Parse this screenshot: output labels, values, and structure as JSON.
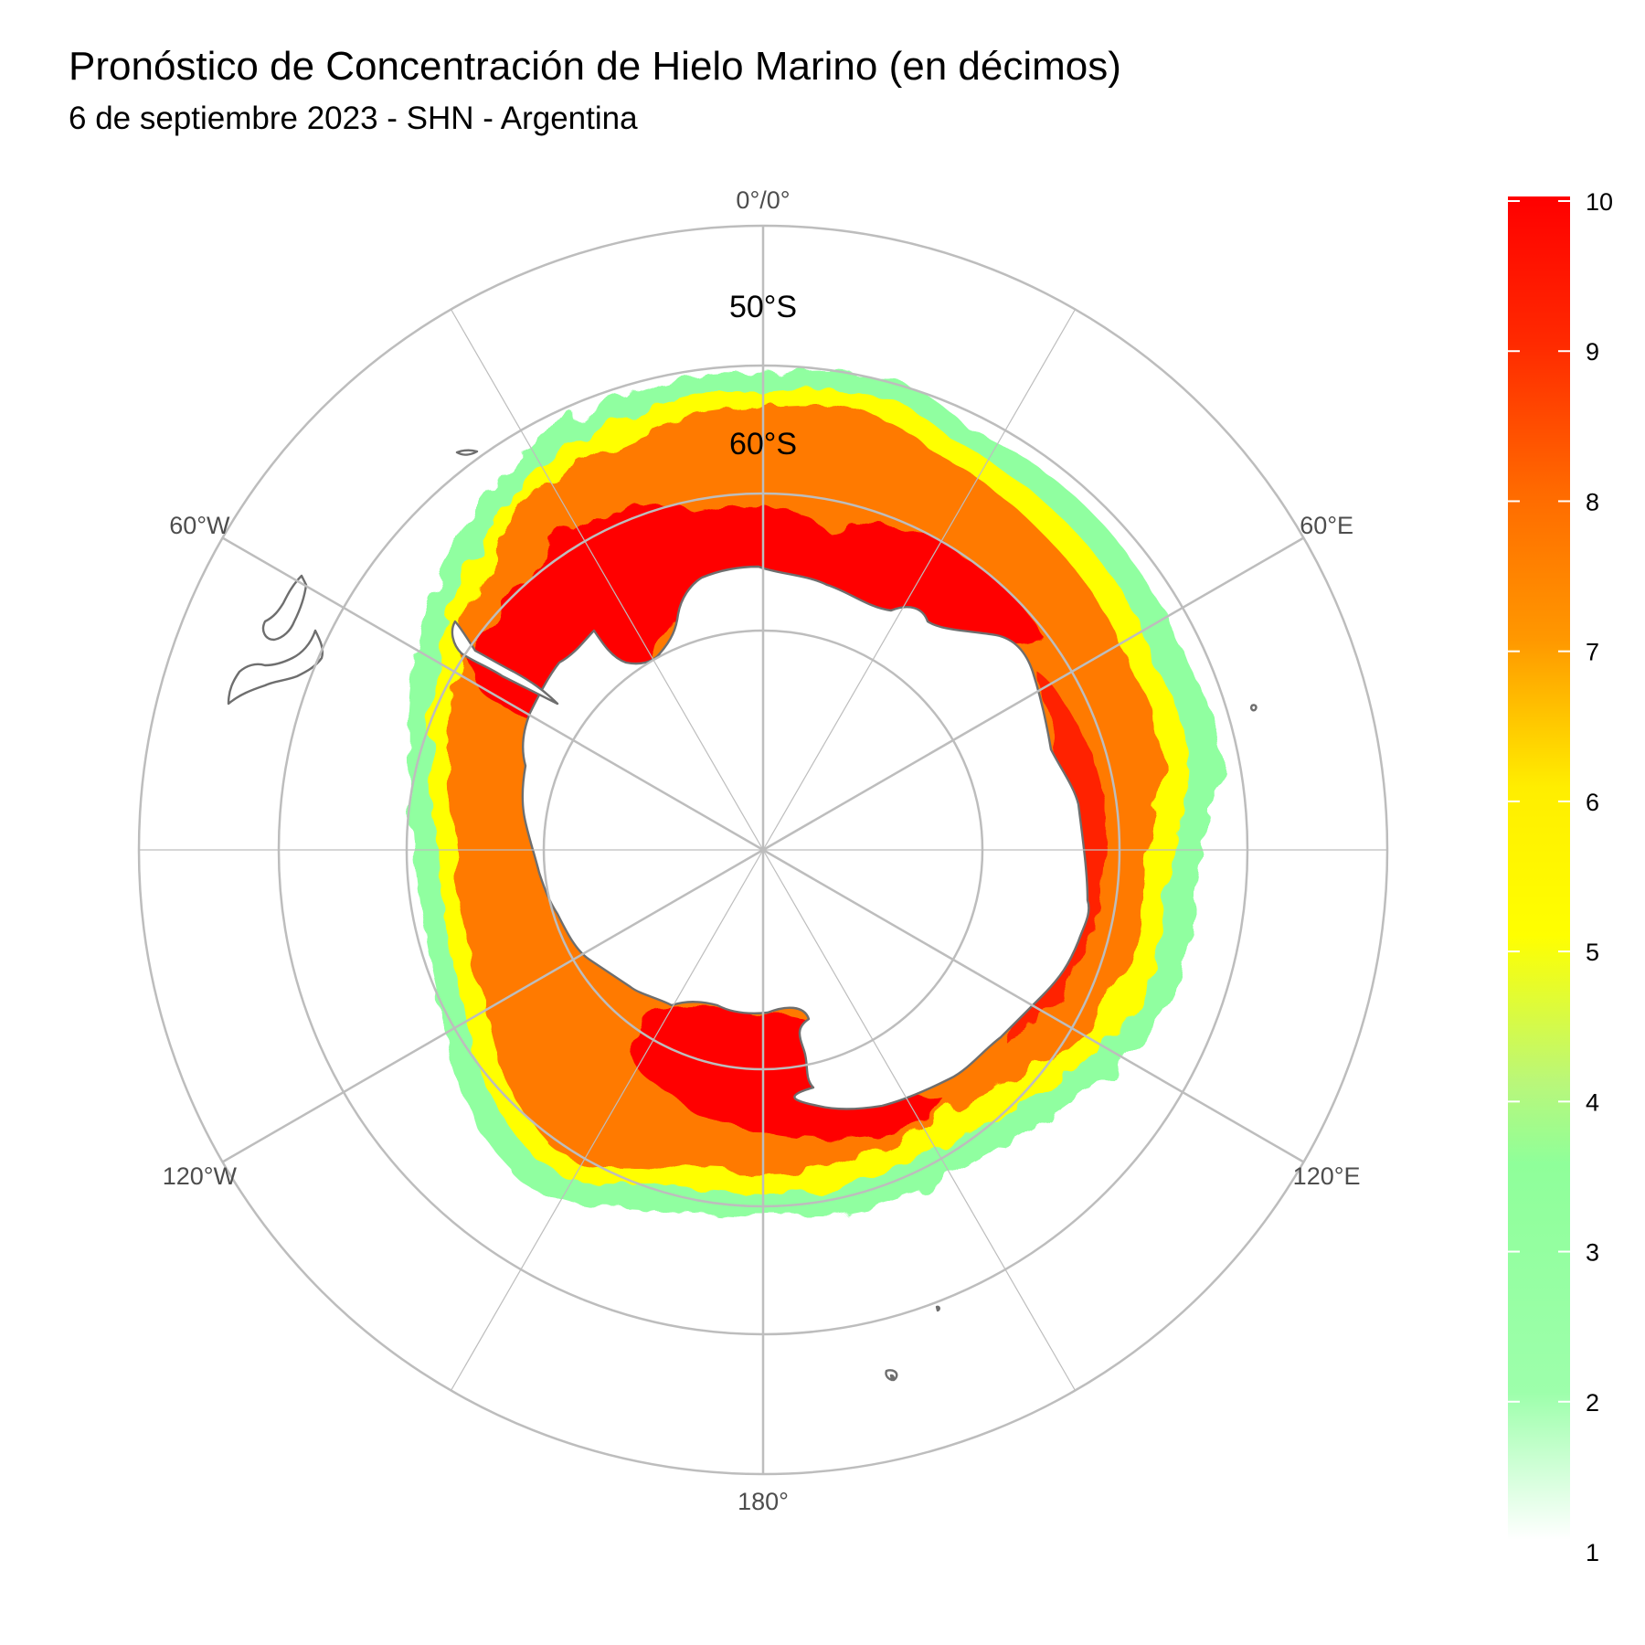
{
  "header": {
    "title": "Pronóstico de Concentración de Hielo Marino (en décimos)",
    "subtitle": "6 de septiembre 2023 - SHN - Argentina"
  },
  "graticule": {
    "longitude_labels": [
      "0°/0°",
      "60°E",
      "120°E",
      "180°",
      "120°W",
      "60°W"
    ],
    "latitude_labels": [
      "50°S",
      "60°S"
    ]
  },
  "legend": {
    "range": [
      1,
      10
    ],
    "ticks": [
      "10",
      "9",
      "8",
      "7",
      "6",
      "5",
      "4",
      "3",
      "2",
      "1"
    ],
    "colors": {
      "10": "#ff0000",
      "9": "#ff2a00",
      "8": "#ff6a00",
      "7": "#ff9a00",
      "6": "#ffe800",
      "5": "#ffff00",
      "4": "#c8f060",
      "3": "#8fff9a",
      "2": "#90ffa0",
      "1": "#ffffff"
    }
  },
  "colors": {
    "background": "#ffffff",
    "grid": "#bdbdbd",
    "coastline": "#6e6e6e",
    "ice_edge_low": "#90ffa0",
    "ice_moderate": "#ffff00",
    "ice_high": "#ff7a00",
    "ice_very_high": "#ff0000"
  }
}
